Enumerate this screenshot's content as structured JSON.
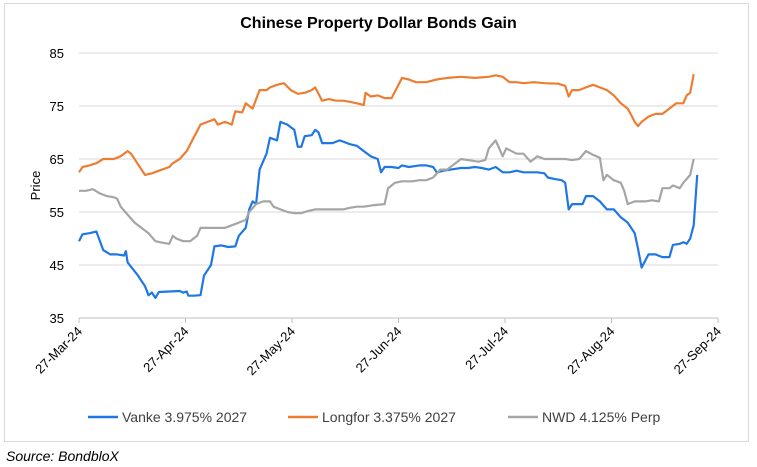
{
  "chart_data": {
    "type": "line",
    "title": "Chinese Property Dollar Bonds Gain",
    "xlabel": "",
    "ylabel": "Price",
    "ylim": [
      35,
      85
    ],
    "yticks": [
      35,
      45,
      55,
      65,
      75,
      85
    ],
    "xticks": [
      "27-Mar-24",
      "27-Apr-24",
      "27-May-24",
      "27-Jun-24",
      "27-Jul-24",
      "27-Aug-24",
      "27-Sep-24"
    ],
    "xlim_days": [
      0,
      184
    ],
    "grid": true,
    "legend": "bottom",
    "series": [
      {
        "name": "Vanke 3.975% 2027",
        "color": "#1f77e4",
        "points": [
          [
            0,
            49.5
          ],
          [
            1,
            50.8
          ],
          [
            3,
            51
          ],
          [
            5,
            51.3
          ],
          [
            7,
            47.8
          ],
          [
            9,
            47
          ],
          [
            11,
            47
          ],
          [
            13,
            46.8
          ],
          [
            13.5,
            47.6
          ],
          [
            14,
            45.5
          ],
          [
            17,
            43
          ],
          [
            19,
            41
          ],
          [
            20,
            39.3
          ],
          [
            21,
            39.8
          ],
          [
            22,
            38.8
          ],
          [
            23,
            39.9
          ],
          [
            26,
            40
          ],
          [
            29,
            40.1
          ],
          [
            30,
            39.8
          ],
          [
            31,
            40
          ],
          [
            31.5,
            39.2
          ],
          [
            33,
            39.2
          ],
          [
            35,
            39.3
          ],
          [
            36,
            43
          ],
          [
            38,
            45
          ],
          [
            39,
            48.5
          ],
          [
            41,
            48.7
          ],
          [
            43,
            48.4
          ],
          [
            45,
            48.5
          ],
          [
            46,
            50.5
          ],
          [
            48,
            52
          ],
          [
            49,
            55.5
          ],
          [
            50,
            57
          ],
          [
            51,
            56.5
          ],
          [
            52,
            63
          ],
          [
            54,
            66
          ],
          [
            55,
            69
          ],
          [
            57,
            68.5
          ],
          [
            58,
            72
          ],
          [
            60,
            71.5
          ],
          [
            61,
            71
          ],
          [
            62,
            70.5
          ],
          [
            63,
            67.3
          ],
          [
            64,
            67.3
          ],
          [
            65,
            69.3
          ],
          [
            67,
            69.5
          ],
          [
            68,
            70.5
          ],
          [
            69,
            70
          ],
          [
            70,
            68
          ],
          [
            73,
            68
          ],
          [
            75,
            68.5
          ],
          [
            76,
            68.3
          ],
          [
            78,
            67.8
          ],
          [
            80,
            67.5
          ],
          [
            82,
            66.5
          ],
          [
            84,
            65.5
          ],
          [
            86,
            65
          ],
          [
            87,
            62.5
          ],
          [
            88,
            63.5
          ],
          [
            90,
            63.5
          ],
          [
            92,
            63.3
          ],
          [
            93,
            63.8
          ],
          [
            95,
            63.5
          ],
          [
            98,
            63.8
          ],
          [
            100,
            63.8
          ],
          [
            102,
            63.5
          ],
          [
            103,
            62.5
          ],
          [
            105,
            62.8
          ],
          [
            107,
            63
          ],
          [
            110,
            63.3
          ],
          [
            112,
            63.3
          ],
          [
            114,
            63.5
          ],
          [
            116,
            63.3
          ],
          [
            118,
            63
          ],
          [
            120,
            63.5
          ],
          [
            122,
            62.5
          ],
          [
            124,
            62.5
          ],
          [
            126,
            62.8
          ],
          [
            128,
            62.5
          ],
          [
            130,
            62.5
          ],
          [
            132,
            62.5
          ],
          [
            134,
            62.3
          ],
          [
            135,
            61.5
          ],
          [
            137,
            61.2
          ],
          [
            139,
            61
          ],
          [
            140,
            60.5
          ],
          [
            141,
            55.5
          ],
          [
            142,
            56.5
          ],
          [
            145,
            56.5
          ],
          [
            146,
            58
          ],
          [
            148,
            58
          ],
          [
            150,
            57
          ],
          [
            152,
            55.5
          ],
          [
            154,
            55.5
          ],
          [
            156,
            54
          ],
          [
            158,
            53
          ],
          [
            160,
            51
          ],
          [
            161,
            48
          ],
          [
            162,
            44.5
          ],
          [
            164,
            47
          ],
          [
            166,
            47
          ],
          [
            168,
            46.5
          ],
          [
            170,
            46.5
          ],
          [
            171,
            48.8
          ],
          [
            173,
            49
          ],
          [
            174,
            49.3
          ],
          [
            175,
            49
          ],
          [
            176,
            50
          ],
          [
            177,
            52.5
          ],
          [
            178,
            62
          ]
        ]
      },
      {
        "name": "Longfor 3.375% 2027",
        "color": "#ed7d31",
        "points": [
          [
            0,
            62.5
          ],
          [
            1,
            63.5
          ],
          [
            3,
            63.8
          ],
          [
            5,
            64.2
          ],
          [
            7,
            65
          ],
          [
            10,
            65
          ],
          [
            12,
            65.5
          ],
          [
            14,
            66.5
          ],
          [
            15,
            66
          ],
          [
            17,
            64
          ],
          [
            19,
            62
          ],
          [
            21,
            62.3
          ],
          [
            23,
            62.8
          ],
          [
            26,
            63.5
          ],
          [
            27,
            64.2
          ],
          [
            29,
            65
          ],
          [
            31,
            66.5
          ],
          [
            33,
            69
          ],
          [
            35,
            71.5
          ],
          [
            37,
            72
          ],
          [
            39,
            72.5
          ],
          [
            40,
            71.5
          ],
          [
            42,
            72
          ],
          [
            44,
            71.5
          ],
          [
            45,
            74
          ],
          [
            47,
            73.8
          ],
          [
            48,
            75.5
          ],
          [
            50,
            74.5
          ],
          [
            52,
            78
          ],
          [
            54,
            78
          ],
          [
            55,
            78.5
          ],
          [
            57,
            79
          ],
          [
            59,
            79.3
          ],
          [
            61,
            78
          ],
          [
            63,
            77.3
          ],
          [
            65,
            77.5
          ],
          [
            67,
            78
          ],
          [
            68,
            78.5
          ],
          [
            70,
            76
          ],
          [
            72,
            76.3
          ],
          [
            74,
            76
          ],
          [
            76,
            76
          ],
          [
            78,
            75.8
          ],
          [
            80,
            75.5
          ],
          [
            82,
            75.2
          ],
          [
            82.5,
            77.5
          ],
          [
            84,
            76.8
          ],
          [
            86,
            77
          ],
          [
            88,
            76.5
          ],
          [
            90,
            76.5
          ],
          [
            92,
            79
          ],
          [
            93,
            80.3
          ],
          [
            95,
            80
          ],
          [
            97,
            79.5
          ],
          [
            100,
            79.5
          ],
          [
            103,
            80
          ],
          [
            106,
            80.3
          ],
          [
            110,
            80.5
          ],
          [
            114,
            80.3
          ],
          [
            118,
            80.5
          ],
          [
            120,
            80.8
          ],
          [
            122,
            80.5
          ],
          [
            124,
            79.5
          ],
          [
            126,
            79.5
          ],
          [
            128,
            79.3
          ],
          [
            131,
            79.5
          ],
          [
            134,
            79.3
          ],
          [
            138,
            79.2
          ],
          [
            140,
            78.8
          ],
          [
            141,
            76.8
          ],
          [
            142,
            78
          ],
          [
            144,
            78
          ],
          [
            146,
            78.5
          ],
          [
            148,
            79
          ],
          [
            150,
            78.5
          ],
          [
            152,
            78
          ],
          [
            154,
            77
          ],
          [
            156,
            75.5
          ],
          [
            158,
            74.5
          ],
          [
            159,
            73.3
          ],
          [
            160,
            72
          ],
          [
            161,
            71.2
          ],
          [
            162,
            72
          ],
          [
            164,
            73
          ],
          [
            166,
            73.5
          ],
          [
            168,
            73.5
          ],
          [
            170,
            74.5
          ],
          [
            172,
            75.5
          ],
          [
            174,
            75.5
          ],
          [
            175,
            77
          ],
          [
            176,
            77.5
          ],
          [
            177,
            81
          ]
        ]
      },
      {
        "name": "NWD 4.125% Perp",
        "color": "#a5a5a5",
        "points": [
          [
            0,
            59
          ],
          [
            2,
            59
          ],
          [
            4,
            59.3
          ],
          [
            6,
            58.5
          ],
          [
            8,
            58
          ],
          [
            10,
            57.8
          ],
          [
            11,
            57.5
          ],
          [
            12,
            56
          ],
          [
            14,
            54.5
          ],
          [
            16,
            53
          ],
          [
            18,
            52
          ],
          [
            20,
            51
          ],
          [
            22,
            49.5
          ],
          [
            24,
            49.2
          ],
          [
            26,
            49
          ],
          [
            27,
            50.5
          ],
          [
            28,
            50
          ],
          [
            30,
            49.5
          ],
          [
            32,
            49.5
          ],
          [
            34,
            50.5
          ],
          [
            35,
            52
          ],
          [
            37,
            52
          ],
          [
            39,
            52
          ],
          [
            42,
            52
          ],
          [
            44,
            52.5
          ],
          [
            46,
            53
          ],
          [
            48,
            53.5
          ],
          [
            49,
            55
          ],
          [
            51,
            56.5
          ],
          [
            53,
            57
          ],
          [
            55,
            57
          ],
          [
            56,
            56
          ],
          [
            58,
            55.5
          ],
          [
            60,
            55
          ],
          [
            62,
            54.8
          ],
          [
            64,
            54.8
          ],
          [
            66,
            55.2
          ],
          [
            68,
            55.5
          ],
          [
            70,
            55.5
          ],
          [
            72,
            55.5
          ],
          [
            74,
            55.5
          ],
          [
            76,
            55.5
          ],
          [
            78,
            55.8
          ],
          [
            80,
            56
          ],
          [
            82,
            56
          ],
          [
            85,
            56.3
          ],
          [
            88,
            56.5
          ],
          [
            89,
            59.5
          ],
          [
            91,
            60.5
          ],
          [
            93,
            60.8
          ],
          [
            96,
            60.8
          ],
          [
            98,
            61
          ],
          [
            100,
            61
          ],
          [
            102,
            61.5
          ],
          [
            104,
            63
          ],
          [
            106,
            63
          ],
          [
            108,
            64
          ],
          [
            110,
            65
          ],
          [
            112,
            64.8
          ],
          [
            115,
            64.5
          ],
          [
            117,
            64.8
          ],
          [
            118,
            67
          ],
          [
            120,
            68.5
          ],
          [
            122,
            65.5
          ],
          [
            123,
            67
          ],
          [
            126,
            66
          ],
          [
            128,
            66
          ],
          [
            130,
            64.5
          ],
          [
            132,
            65.5
          ],
          [
            134,
            65
          ],
          [
            136,
            65
          ],
          [
            138,
            65
          ],
          [
            140,
            65
          ],
          [
            142,
            64.8
          ],
          [
            144,
            65
          ],
          [
            146,
            66.5
          ],
          [
            148,
            65.8
          ],
          [
            150,
            65.2
          ],
          [
            151,
            61
          ],
          [
            152,
            62
          ],
          [
            154,
            61
          ],
          [
            156,
            60.5
          ],
          [
            157,
            59
          ],
          [
            158,
            56.5
          ],
          [
            160,
            57
          ],
          [
            163,
            57
          ],
          [
            165,
            57.2
          ],
          [
            167,
            57
          ],
          [
            168,
            59.5
          ],
          [
            170,
            59.5
          ],
          [
            171,
            60
          ],
          [
            173,
            59.5
          ],
          [
            174,
            60.5
          ],
          [
            176,
            62
          ],
          [
            177,
            65
          ]
        ]
      }
    ]
  },
  "source": "Source: BondbloX"
}
